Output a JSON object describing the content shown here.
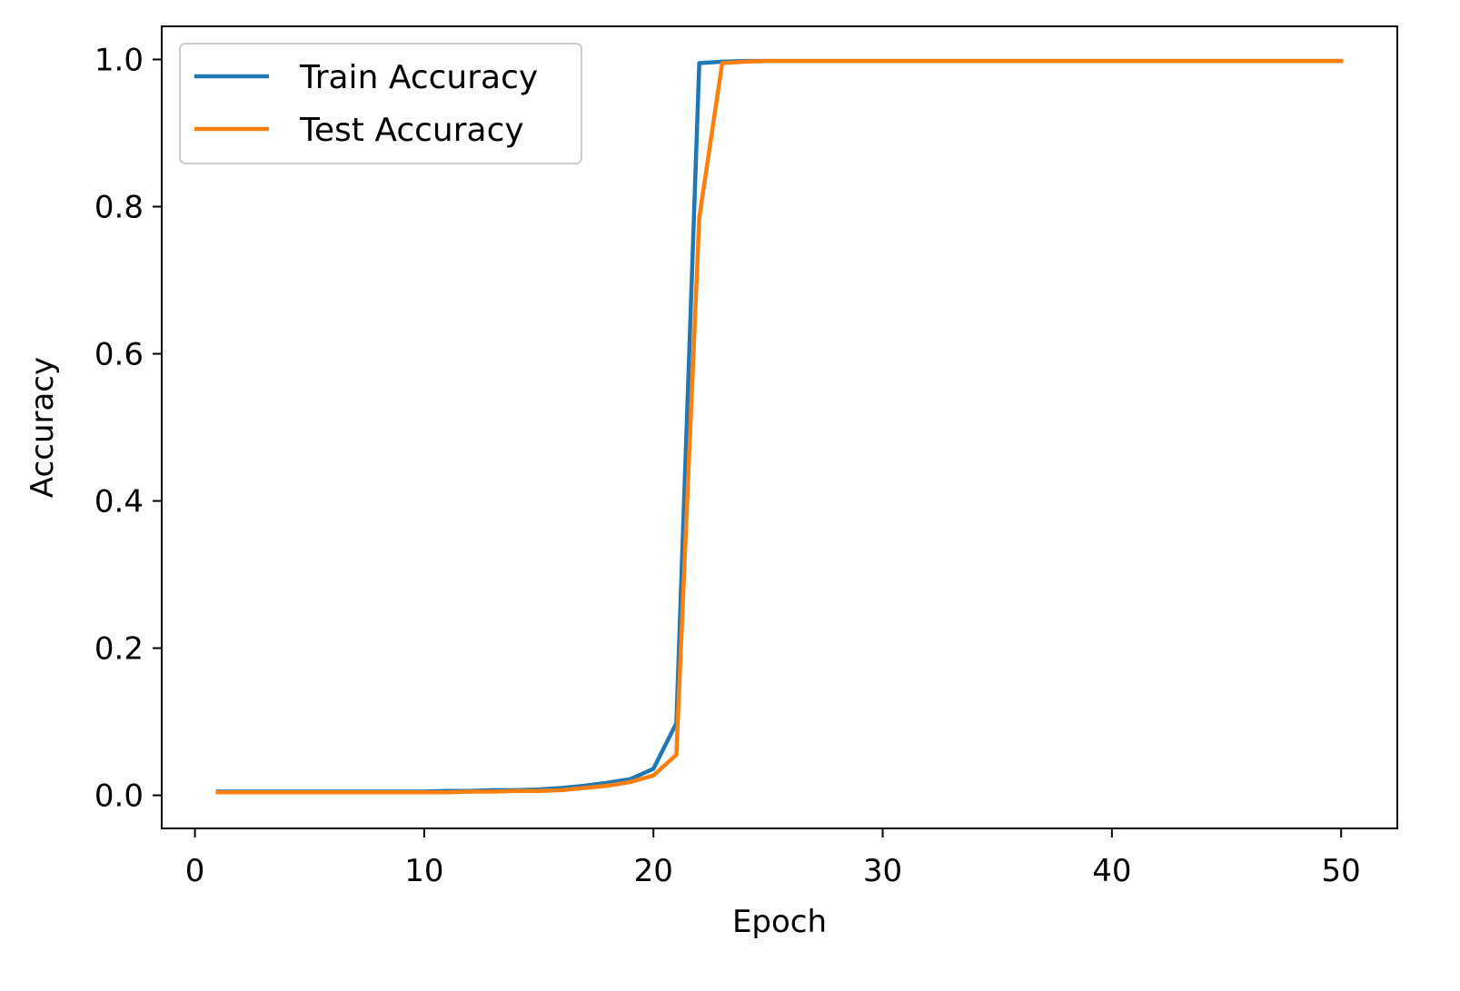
{
  "chart_data": {
    "type": "line",
    "title": "",
    "xlabel": "Epoch",
    "ylabel": "Accuracy",
    "xlim": [
      -1.45,
      52.45
    ],
    "ylim": [
      -0.045,
      1.045
    ],
    "xticks": [
      0,
      10,
      20,
      30,
      40,
      50
    ],
    "yticks": [
      0.0,
      0.2,
      0.4,
      0.6,
      0.8,
      1.0
    ],
    "xtick_labels": [
      "0",
      "10",
      "20",
      "30",
      "40",
      "50"
    ],
    "ytick_labels": [
      "0.0",
      "0.2",
      "0.4",
      "0.6",
      "0.8",
      "1.0"
    ],
    "grid": false,
    "legend_position": "top-left",
    "x": [
      1,
      2,
      3,
      4,
      5,
      6,
      7,
      8,
      9,
      10,
      11,
      12,
      13,
      14,
      15,
      16,
      17,
      18,
      19,
      20,
      21,
      22,
      23,
      24,
      25,
      26,
      27,
      28,
      29,
      30,
      31,
      32,
      33,
      34,
      35,
      36,
      37,
      38,
      39,
      40,
      41,
      42,
      43,
      44,
      45,
      46,
      47,
      48,
      49,
      50
    ],
    "series": [
      {
        "name": "Train Accuracy",
        "color": "#1f77b4",
        "values": [
          0.005,
          0.005,
          0.005,
          0.005,
          0.005,
          0.005,
          0.005,
          0.005,
          0.005,
          0.005,
          0.006,
          0.006,
          0.007,
          0.007,
          0.008,
          0.01,
          0.013,
          0.017,
          0.022,
          0.036,
          0.098,
          0.995,
          0.997,
          0.998,
          0.998,
          0.998,
          0.998,
          0.998,
          0.998,
          0.998,
          0.998,
          0.998,
          0.998,
          0.998,
          0.998,
          0.998,
          0.998,
          0.998,
          0.998,
          0.998,
          0.998,
          0.998,
          0.998,
          0.998,
          0.998,
          0.998,
          0.998,
          0.998,
          0.998,
          0.998
        ]
      },
      {
        "name": "Test Accuracy",
        "color": "#ff7f0e",
        "values": [
          0.004,
          0.004,
          0.004,
          0.004,
          0.004,
          0.004,
          0.004,
          0.004,
          0.004,
          0.004,
          0.004,
          0.005,
          0.005,
          0.006,
          0.006,
          0.007,
          0.01,
          0.013,
          0.018,
          0.027,
          0.055,
          0.785,
          0.995,
          0.997,
          0.998,
          0.998,
          0.998,
          0.998,
          0.998,
          0.998,
          0.998,
          0.998,
          0.998,
          0.998,
          0.998,
          0.998,
          0.998,
          0.998,
          0.998,
          0.998,
          0.998,
          0.998,
          0.998,
          0.998,
          0.998,
          0.998,
          0.998,
          0.998,
          0.998,
          0.998
        ]
      }
    ]
  }
}
